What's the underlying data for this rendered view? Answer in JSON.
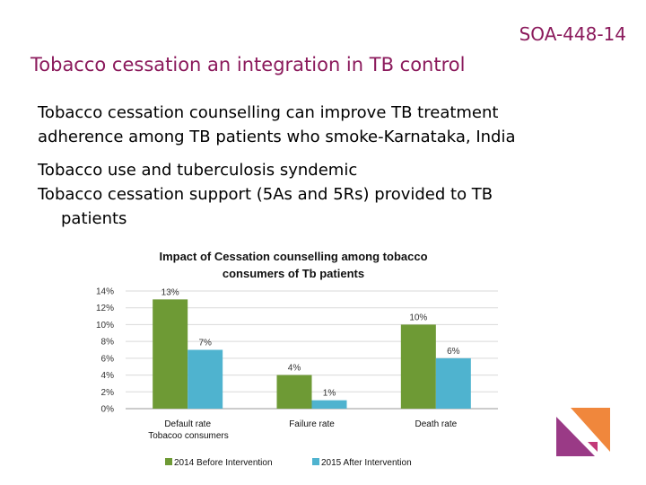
{
  "slide": {
    "code": "SOA-448-14",
    "title": "Tobacco cessation an integration in TB control",
    "subhead_line1": "Tobacco cessation counselling can improve TB treatment",
    "subhead_line2": "adherence among TB patients who smoke-Karnataka, India",
    "bullet1": "Tobacco use and tuberculosis syndemic",
    "bullet2_line1": "Tobacco cessation support (5As and 5Rs) provided to TB",
    "bullet2_line2": "patients"
  },
  "chart_data": {
    "type": "bar",
    "title_line1": "Impact of Cessation counselling among tobacco",
    "title_line2": "consumers of Tb patients",
    "categories": [
      "Default rate",
      "Failure rate",
      "Death rate"
    ],
    "xlabel": "Tobacoo consumers",
    "yticks": [
      "0%",
      "2%",
      "4%",
      "6%",
      "8%",
      "10%",
      "12%",
      "14%"
    ],
    "ylim": [
      0,
      14
    ],
    "grid": true,
    "legend_position": "bottom",
    "series": [
      {
        "name": "2014 Before Intervention",
        "color": "#6e9a35",
        "values": [
          13,
          4,
          10
        ]
      },
      {
        "name": "2015 After Intervention",
        "color": "#4fb3cf",
        "values": [
          7,
          1,
          6
        ]
      }
    ],
    "data_labels": [
      [
        "13%",
        "4%",
        "10%"
      ],
      [
        "7%",
        "1%",
        "6%"
      ]
    ]
  },
  "decor": {
    "logo_colors": [
      "#f0873c",
      "#9a3a86"
    ]
  }
}
